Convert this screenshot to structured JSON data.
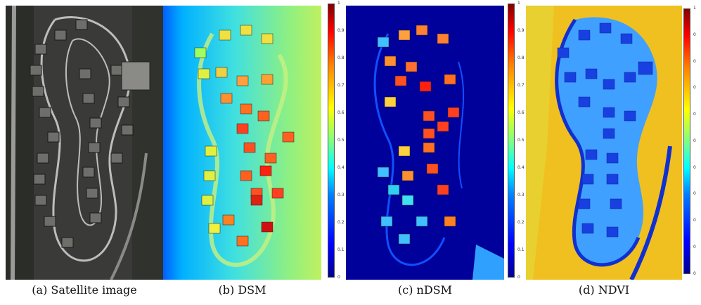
{
  "figure": {
    "panels": [
      {
        "id": "a",
        "caption": "(a) Satellite image"
      },
      {
        "id": "b",
        "caption": "(b) DSM"
      },
      {
        "id": "c",
        "caption": "(c) nDSM"
      },
      {
        "id": "d",
        "caption": "(d) NDVI"
      }
    ],
    "colorbar_ticks": [
      "1",
      "0.9",
      "0.8",
      "0.7",
      "0.6",
      "0.5",
      "0.4",
      "0.3",
      "0.2",
      "0.1",
      "0"
    ],
    "ndvi_ticks": [
      "1",
      "0",
      "0",
      "0",
      "0",
      "0",
      "0",
      "0",
      "0",
      "0",
      "0"
    ],
    "colors": {
      "jet_low": "#00008f",
      "jet_high": "#800000",
      "roof_high": "#e0301a",
      "vegetation": "#f0d000"
    }
  }
}
